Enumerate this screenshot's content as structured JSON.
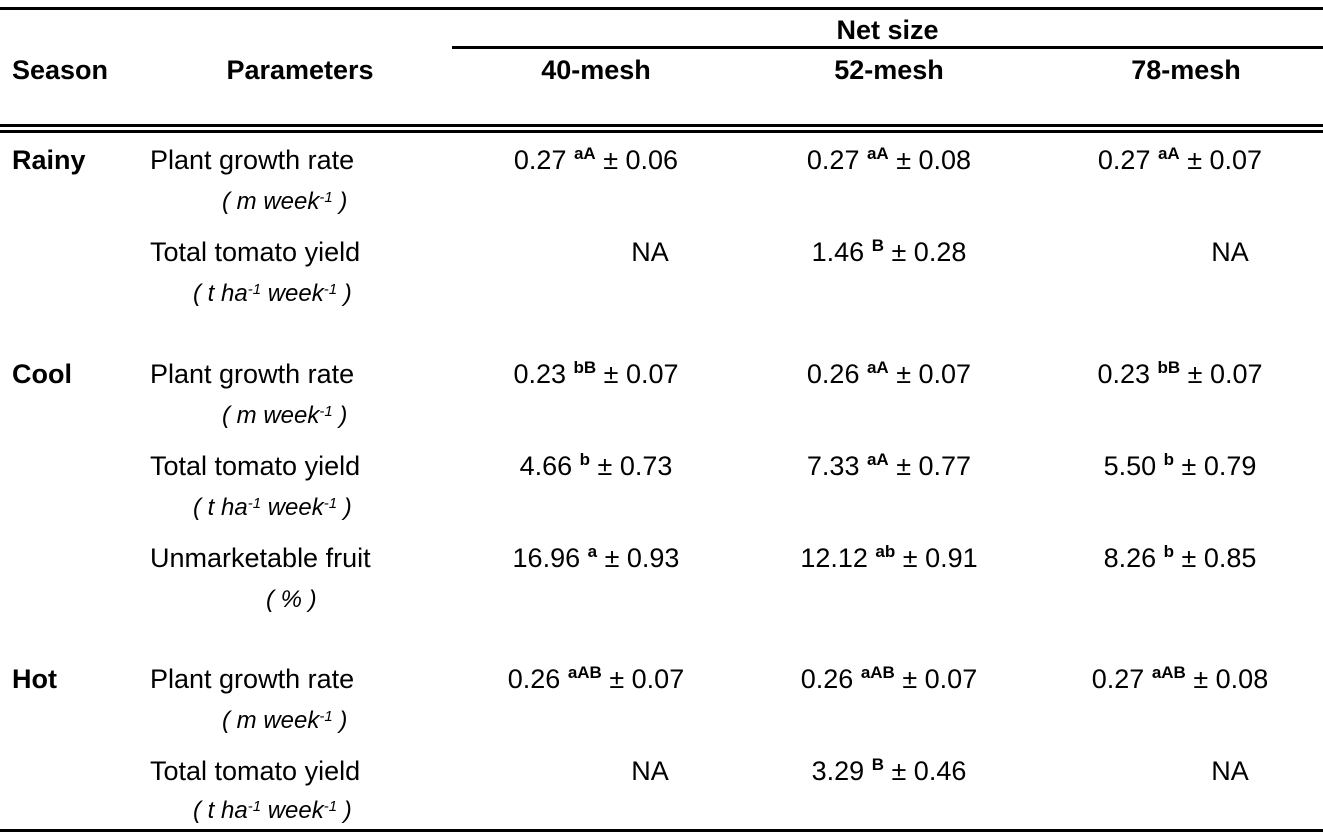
{
  "header": {
    "season": "Season",
    "parameters": "Parameters",
    "net_size": "Net size",
    "col1": "40-mesh",
    "col2": "52-mesh",
    "col3": "78-mesh"
  },
  "seasons": {
    "rainy": "Rainy",
    "cool": "Cool",
    "hot": "Hot"
  },
  "params": {
    "growth": "Plant growth rate",
    "growth_unit": "( m week",
    "growth_unit_sup": "-1",
    "growth_unit_close": " )",
    "yield": "Total tomato yield",
    "yield_unit_a": "( t ha",
    "yield_unit_sup1": "-1",
    "yield_unit_b": "  week",
    "yield_unit_sup2": "-1",
    "yield_unit_close": "  )",
    "unmarket": "Unmarketable fruit",
    "unmarket_unit": "( %  )"
  },
  "rows": {
    "rainy_growth": [
      {
        "v": "0.27 ",
        "s": "aA",
        "e": " ± 0.06"
      },
      {
        "v": "0.27  ",
        "s": "aA",
        "e": " ± 0.08"
      },
      {
        "v": "0.27 ",
        "s": "aA",
        "e": " ± 0.07"
      }
    ],
    "rainy_yield": [
      {
        "v": "NA",
        "s": "",
        "e": ""
      },
      {
        "v": "1.46 ",
        "s": "B",
        "e": " ± 0.28"
      },
      {
        "v": "NA",
        "s": "",
        "e": ""
      }
    ],
    "cool_growth": [
      {
        "v": "0.23 ",
        "s": "bB",
        "e": " ± 0.07"
      },
      {
        "v": "0.26 ",
        "s": "aA",
        "e": " ± 0.07"
      },
      {
        "v": "0.23 ",
        "s": "bB",
        "e": " ± 0.07"
      }
    ],
    "cool_yield": [
      {
        "v": "4.66 ",
        "s": "b",
        "e": " ± 0.73"
      },
      {
        "v": "7.33 ",
        "s": "aA",
        "e": " ± 0.77"
      },
      {
        "v": "5.50 ",
        "s": "b",
        "e": " ± 0.79"
      }
    ],
    "cool_unmarket": [
      {
        "v": "16.96 ",
        "s": "a",
        "e": " ± 0.93"
      },
      {
        "v": "12.12 ",
        "s": "ab",
        "e": " ± 0.91"
      },
      {
        "v": "8.26 ",
        "s": "b",
        "e": " ± 0.85"
      }
    ],
    "hot_growth": [
      {
        "v": "0.26 ",
        "s": "aAB",
        "e": " ± 0.07"
      },
      {
        "v": "0.26 ",
        "s": "aAB",
        "e": " ± 0.07"
      },
      {
        "v": "0.27 ",
        "s": "aAB",
        "e": " ± 0.08"
      }
    ],
    "hot_yield": [
      {
        "v": "NA",
        "s": "",
        "e": ""
      },
      {
        "v": "3.29 ",
        "s": "B",
        "e": " ± 0.46"
      },
      {
        "v": "NA",
        "s": "",
        "e": ""
      }
    ]
  }
}
